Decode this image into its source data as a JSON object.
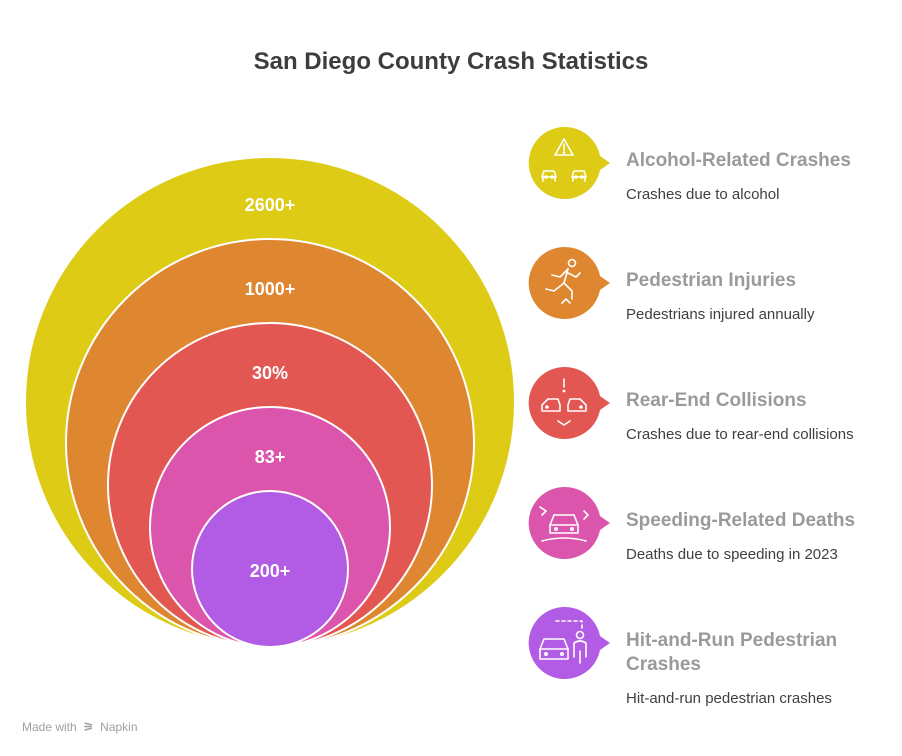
{
  "title": "San Diego County Crash Statistics",
  "rings": [
    {
      "value": "2600+",
      "color": "#DDCB15"
    },
    {
      "value": "1000+",
      "color": "#DF8631"
    },
    {
      "value": "30%",
      "color": "#E25752"
    },
    {
      "value": "83+",
      "color": "#DB55AC"
    },
    {
      "value": "200+",
      "color": "#B25BE4"
    }
  ],
  "items": [
    {
      "title": "Alcohol-Related Crashes",
      "desc": "Crashes due to alcohol",
      "icon": "alcohol-warning-cars-icon",
      "color": "#DDCB15"
    },
    {
      "title": "Pedestrian Injuries",
      "desc": "Pedestrians injured annually",
      "icon": "falling-pedestrian-icon",
      "color": "#DF8631"
    },
    {
      "title": "Rear-End Collisions",
      "desc": "Crashes due to rear-end collisions",
      "icon": "rear-end-collision-icon",
      "color": "#E25752"
    },
    {
      "title": "Speeding-Related Deaths",
      "desc": "Deaths due to speeding in 2023",
      "icon": "speeding-car-icon",
      "color": "#DB55AC"
    },
    {
      "title": "Hit-and-Run Pedestrian Crashes",
      "desc": "Hit-and-run pedestrian crashes",
      "icon": "hit-and-run-icon",
      "color": "#B25BE4"
    }
  ],
  "footer": {
    "made_with": "Made with",
    "brand": "Napkin"
  }
}
